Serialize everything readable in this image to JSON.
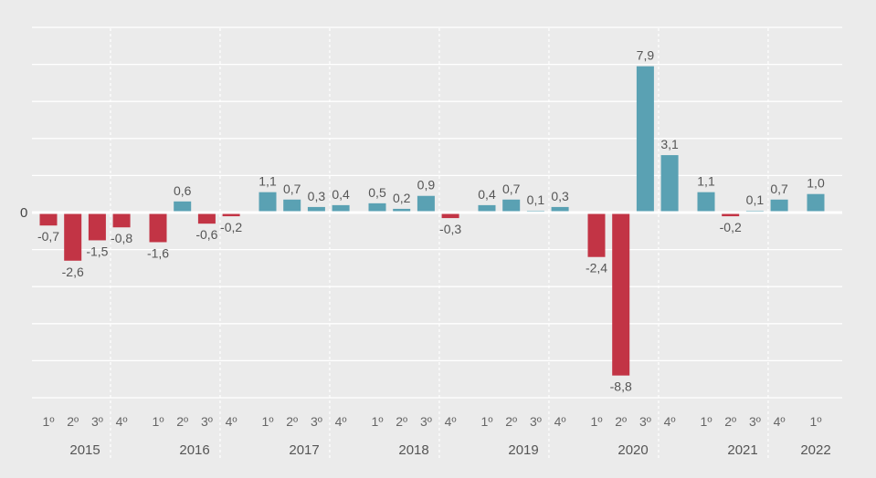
{
  "chart_data": {
    "type": "bar",
    "zero_label": "0",
    "grid": true,
    "ylim": [
      -10,
      10
    ],
    "colors": {
      "positive": "#5aa1b3",
      "negative": "#c23445"
    },
    "years": [
      {
        "label": "2015",
        "quarters": [
          "1º",
          "2º",
          "3º",
          "4º"
        ],
        "values": [
          -0.7,
          -2.6,
          -1.5,
          -0.8
        ],
        "value_labels": [
          "-0,7",
          "-2,6",
          "-1,5",
          "-0,8"
        ]
      },
      {
        "label": "2016",
        "quarters": [
          "1º",
          "2º",
          "3º",
          "4º"
        ],
        "values": [
          -1.6,
          0.6,
          -0.6,
          -0.2
        ],
        "value_labels": [
          "-1,6",
          "0,6",
          "-0,6",
          "-0,2"
        ]
      },
      {
        "label": "2017",
        "quarters": [
          "1º",
          "2º",
          "3º",
          "4º"
        ],
        "values": [
          1.1,
          0.7,
          0.3,
          0.4
        ],
        "value_labels": [
          "1,1",
          "0,7",
          "0,3",
          "0,4"
        ]
      },
      {
        "label": "2018",
        "quarters": [
          "1º",
          "2º",
          "3º",
          "4º"
        ],
        "values": [
          0.5,
          0.2,
          0.9,
          -0.3
        ],
        "value_labels": [
          "0,5",
          "0,2",
          "0,9",
          "-0,3"
        ]
      },
      {
        "label": "2019",
        "quarters": [
          "1º",
          "2º",
          "3º",
          "4º"
        ],
        "values": [
          0.4,
          0.7,
          0.1,
          0.3
        ],
        "value_labels": [
          "0,4",
          "0,7",
          "0,1",
          "0,3"
        ]
      },
      {
        "label": "2020",
        "quarters": [
          "1º",
          "2º",
          "3º",
          "4º"
        ],
        "values": [
          -2.4,
          -8.8,
          7.9,
          3.1
        ],
        "value_labels": [
          "-2,4",
          "-8,8",
          "7,9",
          "3,1"
        ]
      },
      {
        "label": "2021",
        "quarters": [
          "1º",
          "2º",
          "3º",
          "4º"
        ],
        "values": [
          1.1,
          -0.2,
          0.1,
          0.7
        ],
        "value_labels": [
          "1,1",
          "-0,2",
          "0,1",
          "0,7"
        ]
      },
      {
        "label": "2022",
        "quarters": [
          "1º"
        ],
        "values": [
          1.0
        ],
        "value_labels": [
          "1,0"
        ]
      }
    ]
  }
}
